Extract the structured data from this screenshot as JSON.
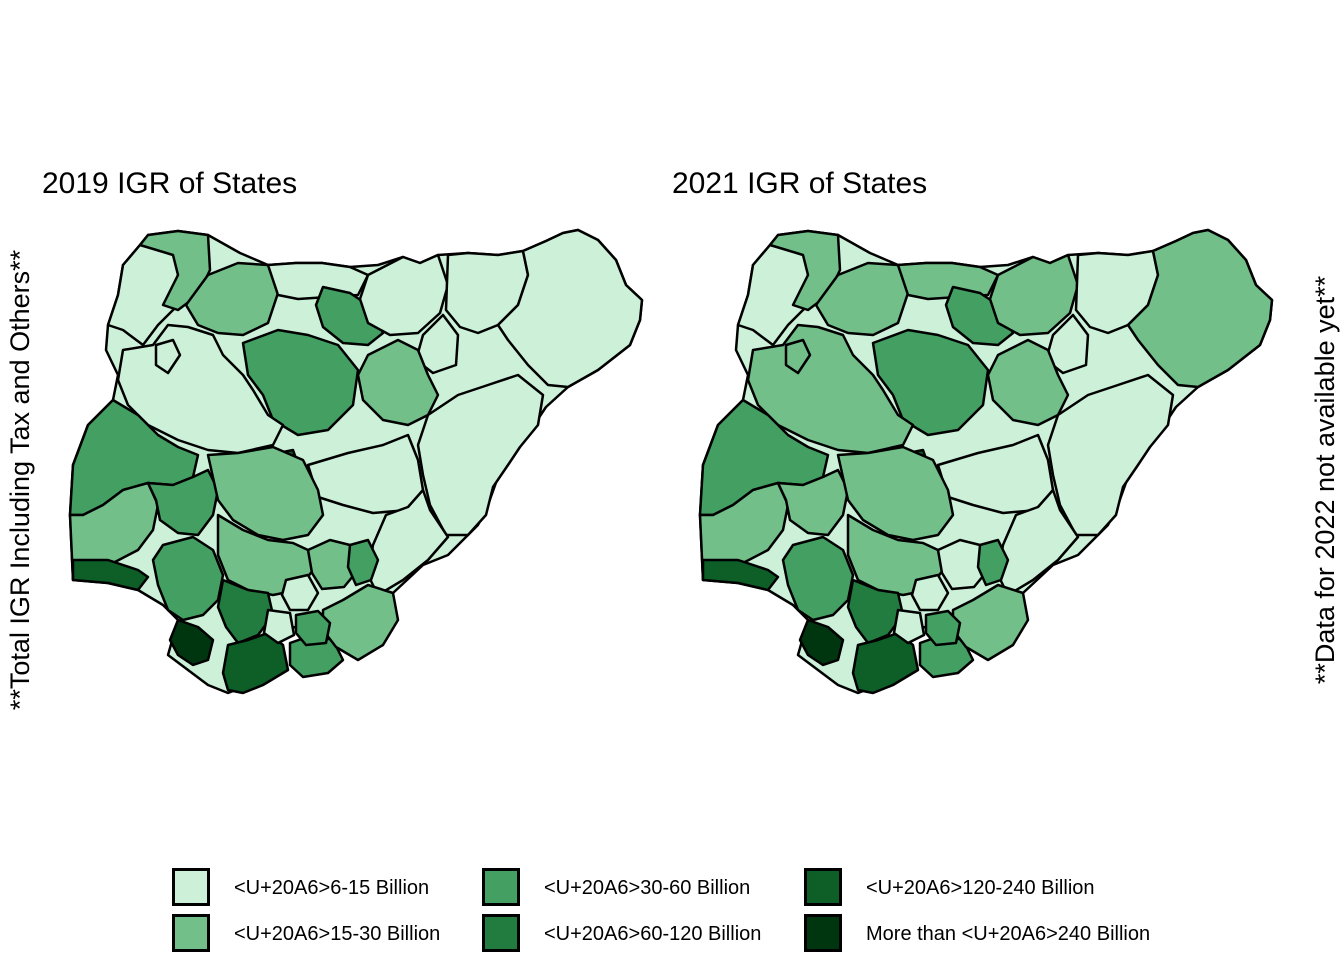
{
  "maps": [
    {
      "title": "2019 IGR of States",
      "regions": {
        "northwest": "c1",
        "sokoto": "c2",
        "zamfara": "c2",
        "kano": "c3",
        "katsina": "c1",
        "north_central_west": "c1",
        "kaduna": "c3",
        "niger_ring": "c1",
        "bauchi": "c1",
        "gombe": "c1",
        "borno": "c1",
        "yobe": "c1",
        "plateau": "c2",
        "fct": "c5",
        "benue": "c1",
        "southeast_block": "c1",
        "taraba": "c1",
        "oyo": "c3",
        "ogun": "c2",
        "lagos": "c5",
        "kwara_west": "c3",
        "kogi": "c2",
        "south_central": "c2",
        "delta": "c3",
        "edo": "c4",
        "bayelsa": "c6",
        "rivers": "c5",
        "akwa_ibom": "c3",
        "cross_river": "c2",
        "anambra": "c1",
        "imo": "c1",
        "abia": "c3",
        "enugu": "c2",
        "ebonyi": "c3"
      }
    },
    {
      "title": "2021 IGR of States",
      "regions": {
        "northwest": "c1",
        "sokoto": "c2",
        "zamfara": "c2",
        "kano": "c3",
        "katsina": "c2",
        "north_central_west": "c2",
        "kaduna": "c3",
        "niger_ring": "c2",
        "bauchi": "c2",
        "gombe": "c1",
        "borno": "c2",
        "yobe": "c1",
        "plateau": "c2",
        "fct": "c5",
        "benue": "c1",
        "southeast_block": "c1",
        "taraba": "c1",
        "oyo": "c3",
        "ogun": "c2",
        "lagos": "c5",
        "kwara_west": "c2",
        "kogi": "c2",
        "south_central": "c2",
        "delta": "c3",
        "edo": "c4",
        "bayelsa": "c6",
        "rivers": "c5",
        "akwa_ibom": "c3",
        "cross_river": "c2",
        "anambra": "c1",
        "imo": "c1",
        "abia": "c3",
        "enugu": "c1",
        "ebonyi": "c3"
      }
    }
  ],
  "left_label": "**Total IGR Including Tax and Others**",
  "right_label": "**Data for 2022 not available yet**",
  "legend": [
    {
      "key": "c1",
      "label": "<U+20A6>6-15  Billion",
      "color": "#ccf1d8"
    },
    {
      "key": "c2",
      "label": "<U+20A6>15-30 Billion",
      "color": "#72bf8a"
    },
    {
      "key": "c3",
      "label": "<U+20A6>30-60 Billion",
      "color": "#43a062"
    },
    {
      "key": "c4",
      "label": "<U+20A6>60-120 Billion",
      "color": "#227c3f"
    },
    {
      "key": "c5",
      "label": "<U+20A6>120-240 Billion",
      "color": "#0d5e27"
    },
    {
      "key": "c6",
      "label": "More than <U+20A6>240 Billion",
      "color": "#00360f"
    }
  ]
}
